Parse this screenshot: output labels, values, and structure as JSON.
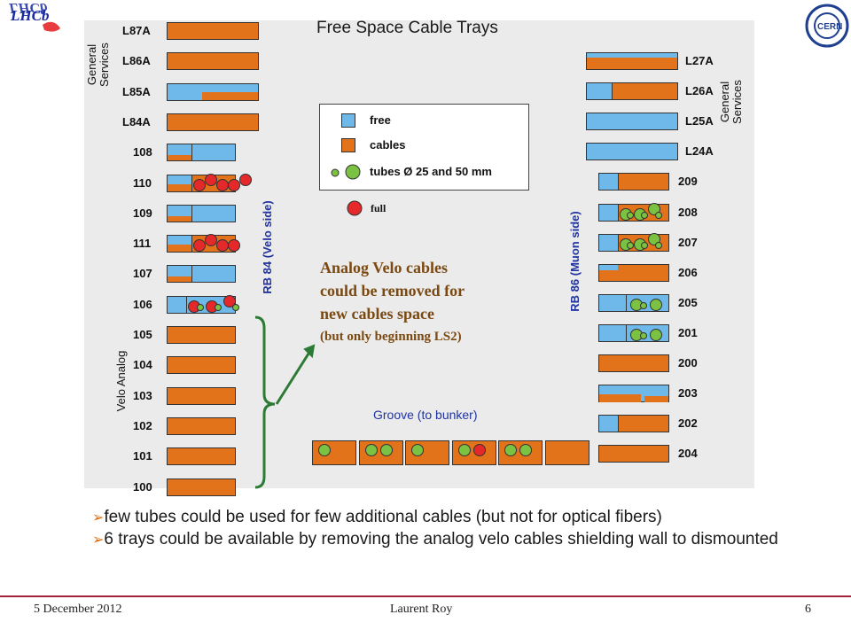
{
  "title": "Free Space Cable Trays",
  "colors": {
    "free": "#6fb8ea",
    "cables": "#e2731b",
    "tube_green": "#7cc242",
    "tube_red": "#e5282a",
    "note": "#7b4a12",
    "blue_text": "#2033a0",
    "bracket": "#2d7a34"
  },
  "left_group_top_label": "General Services",
  "left_group_bottom_label": "Velo Analog",
  "left_side_label": "RB 84 (Velo side)",
  "right_group_top_label": "General Services",
  "right_side_label": "RB 86 (Muon side)",
  "left_trays": [
    {
      "label": "L87A",
      "fill": "cables"
    },
    {
      "label": "L86A",
      "fill": "cables"
    },
    {
      "label": "L85A",
      "fill": "free+cables-low"
    },
    {
      "label": "L84A",
      "fill": "cables"
    },
    {
      "label": "108",
      "fill": "free-mostly",
      "tubes": []
    },
    {
      "label": "110",
      "fill": "mixed",
      "tubes": [
        "red",
        "red",
        "red",
        "red",
        "red"
      ]
    },
    {
      "label": "109",
      "fill": "free-mostly",
      "tubes": []
    },
    {
      "label": "111",
      "fill": "mixed",
      "tubes": [
        "red",
        "red",
        "red",
        "red"
      ]
    },
    {
      "label": "107",
      "fill": "free-mostly",
      "tubes": []
    },
    {
      "label": "106",
      "fill": "free-tubes",
      "tubes": [
        "red",
        "green",
        "red",
        "green",
        "red",
        "green"
      ]
    },
    {
      "label": "105",
      "fill": "cables"
    },
    {
      "label": "104",
      "fill": "cables"
    },
    {
      "label": "103",
      "fill": "cables"
    },
    {
      "label": "102",
      "fill": "cables"
    },
    {
      "label": "101",
      "fill": "cables"
    },
    {
      "label": "100",
      "fill": "cables"
    }
  ],
  "right_trays": [
    {
      "label": "L27A",
      "fill": "cables-low"
    },
    {
      "label": "L26A",
      "fill": "free+cables"
    },
    {
      "label": "L25A",
      "fill": "free"
    },
    {
      "label": "L24A",
      "fill": "free"
    },
    {
      "label": "209",
      "fill": "free+cables"
    },
    {
      "label": "208",
      "fill": "free+cables-tubes",
      "tubes": [
        "green",
        "green",
        "green",
        "green",
        "green",
        "green"
      ]
    },
    {
      "label": "207",
      "fill": "free+cables-tubes",
      "tubes": [
        "green",
        "green",
        "green",
        "green",
        "green",
        "green"
      ]
    },
    {
      "label": "206",
      "fill": "cables-mostly"
    },
    {
      "label": "205",
      "fill": "free+tubes",
      "tubes": [
        "green",
        "green",
        "green"
      ]
    },
    {
      "label": "201",
      "fill": "free+tubes",
      "tubes": [
        "green",
        "green",
        "green"
      ]
    },
    {
      "label": "200",
      "fill": "cables"
    },
    {
      "label": "203",
      "fill": "cables-step"
    },
    {
      "label": "202",
      "fill": "free+cables"
    },
    {
      "label": "204",
      "fill": "cables"
    }
  ],
  "legend": {
    "free": "free",
    "cables": "cables",
    "tubes": "tubes Ø 25 and 50 mm"
  },
  "full_label": "full",
  "note": {
    "line1": "Analog Velo cables",
    "line2": "could be removed for",
    "line3": "new cables space",
    "line4": "(but only beginning LS2)"
  },
  "groove_label": "Groove (to bunker)",
  "groove_trays": [
    {
      "tubes": [
        "green"
      ]
    },
    {
      "tubes": [
        "green",
        "green"
      ]
    },
    {
      "tubes": [
        "green"
      ]
    },
    {
      "tubes": [
        "green",
        "red"
      ]
    },
    {
      "tubes": [
        "green",
        "green"
      ]
    },
    {
      "tubes": []
    }
  ],
  "bullets": [
    "few tubes could be used for few additional cables (but not for optical fibers)",
    "6 trays could be available by removing the analog velo cables  shielding wall to dismounted"
  ],
  "footer": {
    "date": "5 December 2012",
    "author": "Laurent Roy",
    "page": "6"
  },
  "logos": {
    "lhcb": "LHCb",
    "cern": "CERN"
  }
}
